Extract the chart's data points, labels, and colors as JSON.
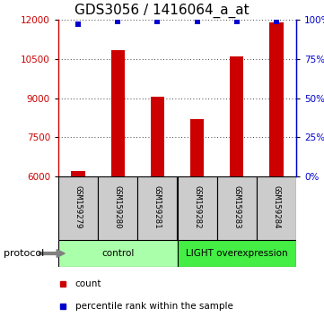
{
  "title": "GDS3056 / 1416064_a_at",
  "samples": [
    "GSM159279",
    "GSM159280",
    "GSM159281",
    "GSM159282",
    "GSM159283",
    "GSM159284"
  ],
  "counts": [
    6220,
    10820,
    9050,
    8200,
    10600,
    11900
  ],
  "percentile_ranks": [
    97,
    99,
    99,
    99,
    99,
    99
  ],
  "ylim_left": [
    6000,
    12000
  ],
  "ylim_right": [
    0,
    100
  ],
  "yticks_left": [
    6000,
    7500,
    9000,
    10500,
    12000
  ],
  "yticks_right": [
    0,
    25,
    50,
    75,
    100
  ],
  "bar_color": "#cc0000",
  "marker_color": "#0000cc",
  "bar_width": 0.35,
  "groups": [
    {
      "label": "control",
      "indices": [
        0,
        1,
        2
      ],
      "color": "#aaffaa"
    },
    {
      "label": "LIGHT overexpression",
      "indices": [
        3,
        4,
        5
      ],
      "color": "#44ee44"
    }
  ],
  "protocol_label": "protocol",
  "legend_count_label": "count",
  "legend_percentile_label": "percentile rank within the sample",
  "title_fontsize": 11,
  "tick_fontsize": 7.5,
  "sample_fontsize": 6.5,
  "legend_fontsize": 7.5,
  "protocol_fontsize": 8,
  "background_color": "#ffffff",
  "plot_bg_color": "#ffffff",
  "sample_label_bg": "#cccccc",
  "fig_width": 3.61,
  "fig_height": 3.54,
  "fig_dpi": 100
}
